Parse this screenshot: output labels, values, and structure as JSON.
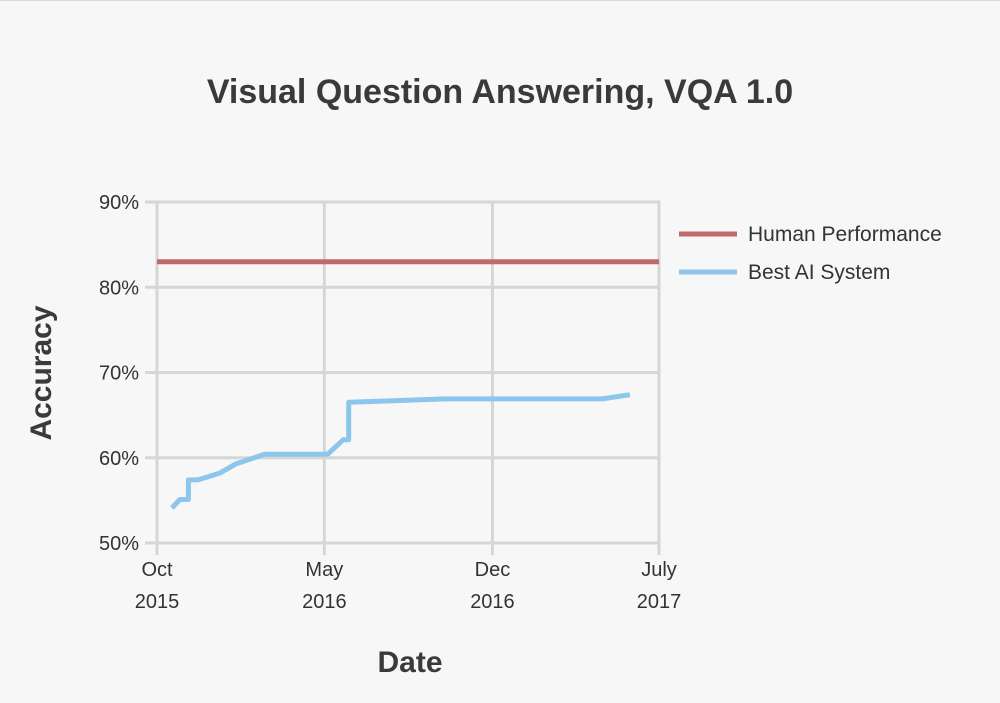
{
  "chart_data": {
    "type": "line",
    "title": "Visual Question Answering, VQA 1.0",
    "xlabel": "Date",
    "ylabel": "Accuracy",
    "ylim": [
      50,
      90
    ],
    "y_ticks": [
      "50%",
      "60%",
      "70%",
      "80%",
      "90%"
    ],
    "xlim": [
      "2015-10",
      "2017-07"
    ],
    "x_ticks": [
      {
        "line1": "Oct",
        "line2": "2015",
        "date": "2015-10"
      },
      {
        "line1": "May",
        "line2": "2016",
        "date": "2016-05"
      },
      {
        "line1": "Dec",
        "line2": "2016",
        "date": "2016-12"
      },
      {
        "line1": "July",
        "line2": "2017",
        "date": "2017-07"
      }
    ],
    "grid": true,
    "legend_position": "right",
    "series": [
      {
        "name": "Human Performance",
        "color": "#c0686a",
        "points": [
          [
            "2015-10",
            83.0
          ],
          [
            "2017-07",
            83.0
          ]
        ]
      },
      {
        "name": "Best AI System",
        "color": "#8ec5ec",
        "points": [
          [
            "2015-10-20",
            54.1
          ],
          [
            "2015-10-30",
            55.1
          ],
          [
            "2015-11-10",
            55.1
          ],
          [
            "2015-11-10",
            57.4
          ],
          [
            "2015-11-22",
            57.4
          ],
          [
            "2015-12-20",
            58.2
          ],
          [
            "2016-01-10",
            59.3
          ],
          [
            "2016-02-15",
            60.4
          ],
          [
            "2016-03-10",
            60.4
          ],
          [
            "2016-04-10",
            60.4
          ],
          [
            "2016-05-05",
            60.4
          ],
          [
            "2016-05-25",
            62.1
          ],
          [
            "2016-06-01",
            62.1
          ],
          [
            "2016-06-01",
            66.5
          ],
          [
            "2016-08-01",
            66.7
          ],
          [
            "2016-10-01",
            66.9
          ],
          [
            "2017-02-01",
            66.9
          ],
          [
            "2017-04-20",
            66.9
          ],
          [
            "2017-05-25",
            67.4
          ]
        ]
      }
    ]
  }
}
